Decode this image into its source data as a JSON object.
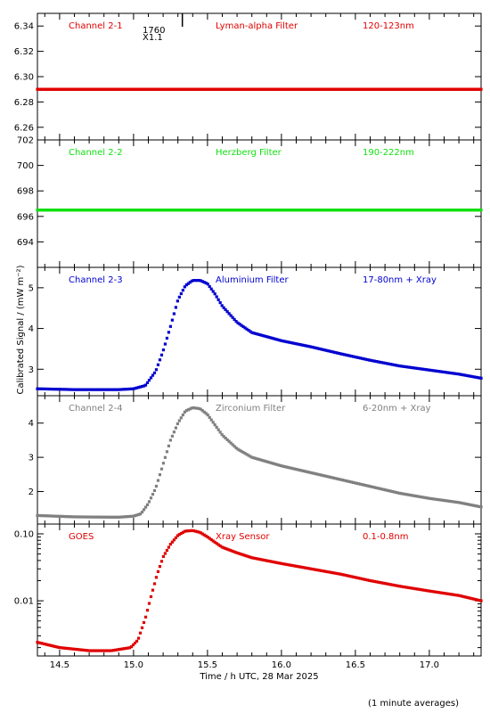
{
  "chart_data": {
    "type": "scatter",
    "xlabel": "Time / h UTC, 28 Mar 2025",
    "ylabel": "Calibrated Signal / (mW m⁻²)",
    "footnote": "(1 minute averages)",
    "xlim": [
      14.35,
      17.35
    ],
    "xticks": [
      14.5,
      15.0,
      15.5,
      16.0,
      16.5,
      17.0
    ],
    "xtick_labels": [
      "14.5",
      "15.0",
      "15.5",
      "16.0",
      "16.5",
      "17.0"
    ],
    "flare_class": "X1.1",
    "flare_time": "1760",
    "flare_marker_x": 15.33,
    "panels": [
      {
        "channel": "Channel 2-1",
        "filter": "Lyman-alpha Filter",
        "band": "120-123nm",
        "color": "#e00000",
        "ylim": [
          6.25,
          6.35
        ],
        "yticks": [
          6.26,
          6.28,
          6.3,
          6.32,
          6.34
        ],
        "ytick_labels": [
          "6.26",
          "6.28",
          "6.30",
          "6.32",
          "6.34"
        ],
        "log": false,
        "x": [
          14.35,
          15.0,
          15.5,
          16.0,
          16.5,
          17.0,
          17.35
        ],
        "y": [
          6.29,
          6.29,
          6.29,
          6.29,
          6.29,
          6.29,
          6.29
        ]
      },
      {
        "channel": "Channel 2-2",
        "filter": "Herzberg Filter",
        "band": "190-222nm",
        "color": "#10e010",
        "ylim": [
          692,
          702
        ],
        "yticks": [
          694,
          696,
          698,
          700,
          702
        ],
        "ytick_labels": [
          "694",
          "696",
          "698",
          "700",
          "702"
        ],
        "log": false,
        "x": [
          14.35,
          15.0,
          15.5,
          16.0,
          16.5,
          17.0,
          17.35
        ],
        "y": [
          696.5,
          696.5,
          696.5,
          696.5,
          696.5,
          696.5,
          696.5
        ]
      },
      {
        "channel": "Channel 2-3",
        "filter": "Aluminium Filter",
        "band": "17-80nm + Xray",
        "color": "#0000d0",
        "ylim": [
          2.35,
          5.5
        ],
        "yticks": [
          3,
          4,
          5
        ],
        "ytick_labels": [
          "3",
          "4",
          "5"
        ],
        "log": false,
        "x": [
          14.35,
          14.6,
          14.9,
          15.0,
          15.08,
          15.15,
          15.2,
          15.25,
          15.3,
          15.35,
          15.4,
          15.45,
          15.5,
          15.55,
          15.6,
          15.7,
          15.8,
          16.0,
          16.2,
          16.4,
          16.6,
          16.8,
          17.0,
          17.2,
          17.35
        ],
        "y": [
          2.52,
          2.5,
          2.5,
          2.52,
          2.6,
          2.95,
          3.45,
          4.05,
          4.7,
          5.05,
          5.18,
          5.18,
          5.1,
          4.85,
          4.55,
          4.15,
          3.9,
          3.7,
          3.55,
          3.38,
          3.22,
          3.08,
          2.98,
          2.88,
          2.78
        ]
      },
      {
        "channel": "Channel 2-4",
        "filter": "Zirconium Filter",
        "band": "6-20nm + Xray",
        "color": "#808080",
        "ylim": [
          1.05,
          4.8
        ],
        "yticks": [
          2,
          3,
          4
        ],
        "ytick_labels": [
          "2",
          "3",
          "4"
        ],
        "log": false,
        "x": [
          14.35,
          14.6,
          14.9,
          15.0,
          15.05,
          15.1,
          15.15,
          15.2,
          15.25,
          15.3,
          15.35,
          15.4,
          15.45,
          15.5,
          15.55,
          15.6,
          15.7,
          15.8,
          16.0,
          16.2,
          16.4,
          16.6,
          16.8,
          17.0,
          17.2,
          17.35
        ],
        "y": [
          1.3,
          1.26,
          1.25,
          1.28,
          1.35,
          1.65,
          2.1,
          2.8,
          3.5,
          4.0,
          4.35,
          4.45,
          4.42,
          4.25,
          3.95,
          3.65,
          3.25,
          3.0,
          2.75,
          2.55,
          2.35,
          2.15,
          1.95,
          1.8,
          1.68,
          1.55
        ]
      },
      {
        "channel": "GOES",
        "filter": "Xray Sensor",
        "band": "0.1-0.8nm",
        "color": "#e00000",
        "ylim": [
          0.0015,
          0.14
        ],
        "yticks": [
          0.01,
          0.1
        ],
        "ytick_labels": [
          "0.01",
          "0.10"
        ],
        "log": true,
        "x": [
          14.35,
          14.5,
          14.7,
          14.85,
          14.98,
          15.03,
          15.08,
          15.12,
          15.16,
          15.2,
          15.25,
          15.3,
          15.35,
          15.4,
          15.45,
          15.5,
          15.55,
          15.6,
          15.7,
          15.8,
          16.0,
          16.2,
          16.4,
          16.6,
          16.8,
          17.0,
          17.2,
          17.35
        ],
        "y": [
          0.0024,
          0.002,
          0.0018,
          0.0018,
          0.002,
          0.0026,
          0.0055,
          0.012,
          0.025,
          0.045,
          0.07,
          0.095,
          0.11,
          0.112,
          0.105,
          0.09,
          0.075,
          0.063,
          0.052,
          0.044,
          0.036,
          0.03,
          0.025,
          0.02,
          0.0165,
          0.014,
          0.012,
          0.01
        ]
      }
    ]
  }
}
